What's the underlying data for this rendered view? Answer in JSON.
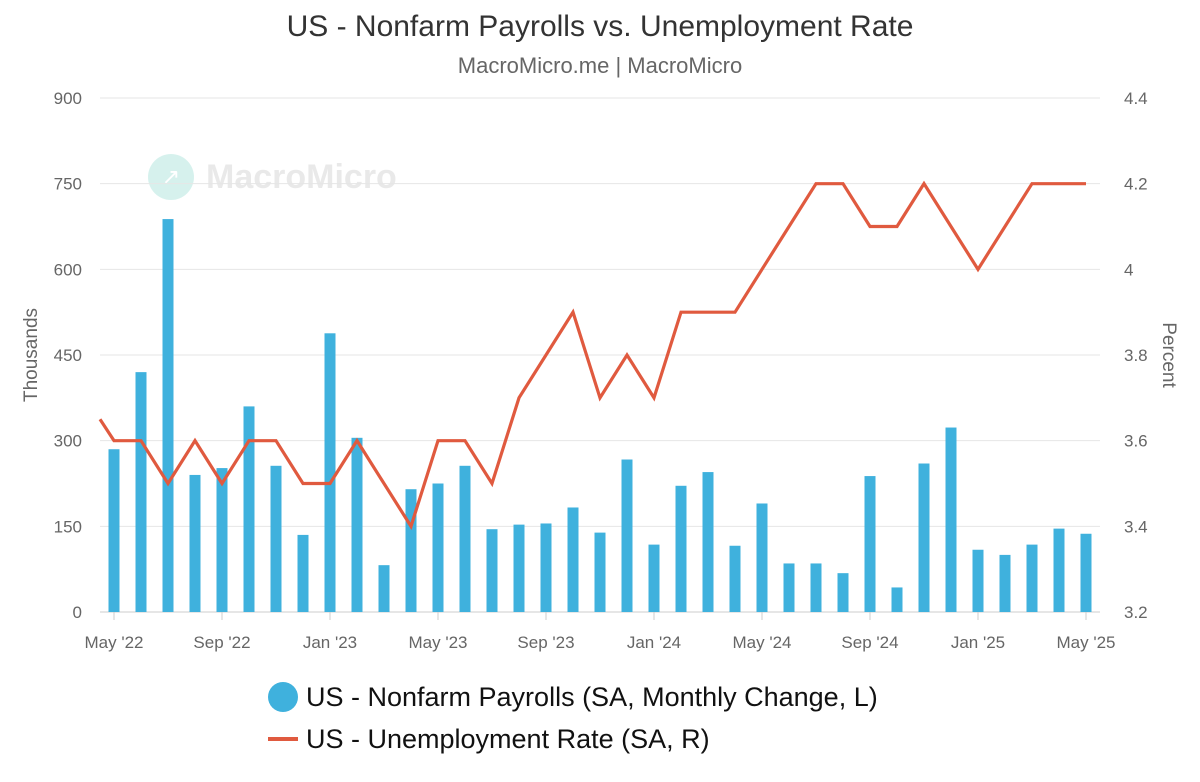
{
  "header": {
    "title": "US - Nonfarm Payrolls vs. Unemployment Rate",
    "subtitle": "MacroMicro.me | MacroMicro"
  },
  "watermark": {
    "text": "MacroMicro",
    "icon": "trend-chart-icon"
  },
  "colors": {
    "bars": "#3fb1dd",
    "line": "#e05a3f",
    "grid": "#e6e6e6"
  },
  "chart_data": {
    "type": "bar",
    "x": [
      "2022-05",
      "2022-06",
      "2022-07",
      "2022-08",
      "2022-09",
      "2022-10",
      "2022-11",
      "2022-12",
      "2023-01",
      "2023-02",
      "2023-03",
      "2023-04",
      "2023-05",
      "2023-06",
      "2023-07",
      "2023-08",
      "2023-09",
      "2023-10",
      "2023-11",
      "2023-12",
      "2024-01",
      "2024-02",
      "2024-03",
      "2024-04",
      "2024-05",
      "2024-06",
      "2024-07",
      "2024-08",
      "2024-09",
      "2024-10",
      "2024-11",
      "2024-12",
      "2025-01",
      "2025-02",
      "2025-03",
      "2025-04",
      "2025-05"
    ],
    "x_ticks": [
      "May '22",
      "Sep '22",
      "Jan '23",
      "May '23",
      "Sep '23",
      "Jan '24",
      "May '24",
      "Sep '24",
      "Jan '25",
      "May '25"
    ],
    "series": [
      {
        "name": "US - Nonfarm Payrolls (SA, Monthly Change, L)",
        "type": "bar",
        "axis": "left",
        "values": [
          285,
          420,
          688,
          240,
          252,
          360,
          256,
          135,
          488,
          305,
          82,
          215,
          225,
          256,
          145,
          153,
          155,
          183,
          139,
          267,
          118,
          221,
          245,
          116,
          190,
          85,
          85,
          68,
          238,
          43,
          260,
          323,
          109,
          100,
          118,
          146,
          137
        ]
      },
      {
        "name": "US - Unemployment Rate (SA, R)",
        "type": "line",
        "axis": "right",
        "values": [
          3.6,
          3.6,
          3.5,
          3.6,
          3.5,
          3.6,
          3.6,
          3.5,
          3.5,
          3.6,
          3.5,
          3.4,
          3.6,
          3.6,
          3.5,
          3.7,
          3.8,
          3.9,
          3.7,
          3.8,
          3.7,
          3.9,
          3.9,
          3.9,
          4.0,
          4.1,
          4.2,
          4.2,
          4.1,
          4.1,
          4.2,
          4.1,
          4.0,
          4.1,
          4.2,
          4.2,
          4.2
        ],
        "prior_value": 3.65
      }
    ],
    "left_axis": {
      "title": "Thousands",
      "ylim": [
        0,
        900
      ],
      "ticks": [
        "0",
        "150",
        "300",
        "450",
        "600",
        "750",
        "900"
      ]
    },
    "right_axis": {
      "title": "Percent",
      "ylim": [
        3.2,
        4.4
      ],
      "ticks": [
        "3.2",
        "3.4",
        "3.6",
        "3.8",
        "4",
        "4.2",
        "4.4"
      ]
    },
    "grid": true,
    "legend_position": "bottom"
  }
}
